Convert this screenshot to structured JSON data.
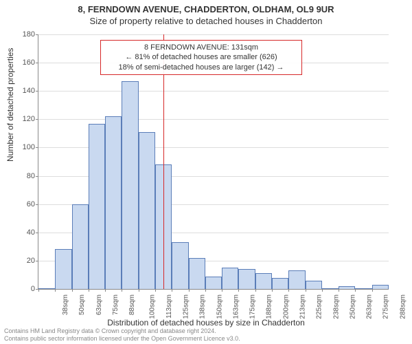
{
  "title": "8, FERNDOWN AVENUE, CHADDERTON, OLDHAM, OL9 9UR",
  "subtitle": "Size of property relative to detached houses in Chadderton",
  "chart": {
    "type": "histogram",
    "ylabel": "Number of detached properties",
    "xlabel": "Distribution of detached houses by size in Chadderton",
    "ylim_max": 180,
    "ytick_step": 20,
    "yticks": [
      0,
      20,
      40,
      60,
      80,
      100,
      120,
      140,
      160,
      180
    ],
    "xticks": [
      "38sqm",
      "50sqm",
      "63sqm",
      "75sqm",
      "88sqm",
      "100sqm",
      "113sqm",
      "125sqm",
      "138sqm",
      "150sqm",
      "163sqm",
      "175sqm",
      "188sqm",
      "200sqm",
      "213sqm",
      "225sqm",
      "238sqm",
      "250sqm",
      "263sqm",
      "275sqm",
      "288sqm"
    ],
    "values": [
      0,
      28,
      60,
      117,
      122,
      147,
      111,
      88,
      33,
      22,
      9,
      15,
      14,
      11,
      8,
      13,
      6,
      0,
      2,
      0,
      3
    ],
    "bar_fill": "#c9d9f0",
    "bar_stroke": "#5a7db8",
    "grid_color": "#dddddd",
    "background": "#ffffff",
    "marker_index": 7.5,
    "marker_color": "#d62728"
  },
  "annotation": {
    "line1": "8 FERNDOWN AVENUE: 131sqm",
    "line2": "← 81% of detached houses are smaller (626)",
    "line3": "18% of semi-detached houses are larger (142) →"
  },
  "footer": {
    "line1": "Contains HM Land Registry data © Crown copyright and database right 2024.",
    "line2": "Contains public sector information licensed under the Open Government Licence v3.0."
  }
}
